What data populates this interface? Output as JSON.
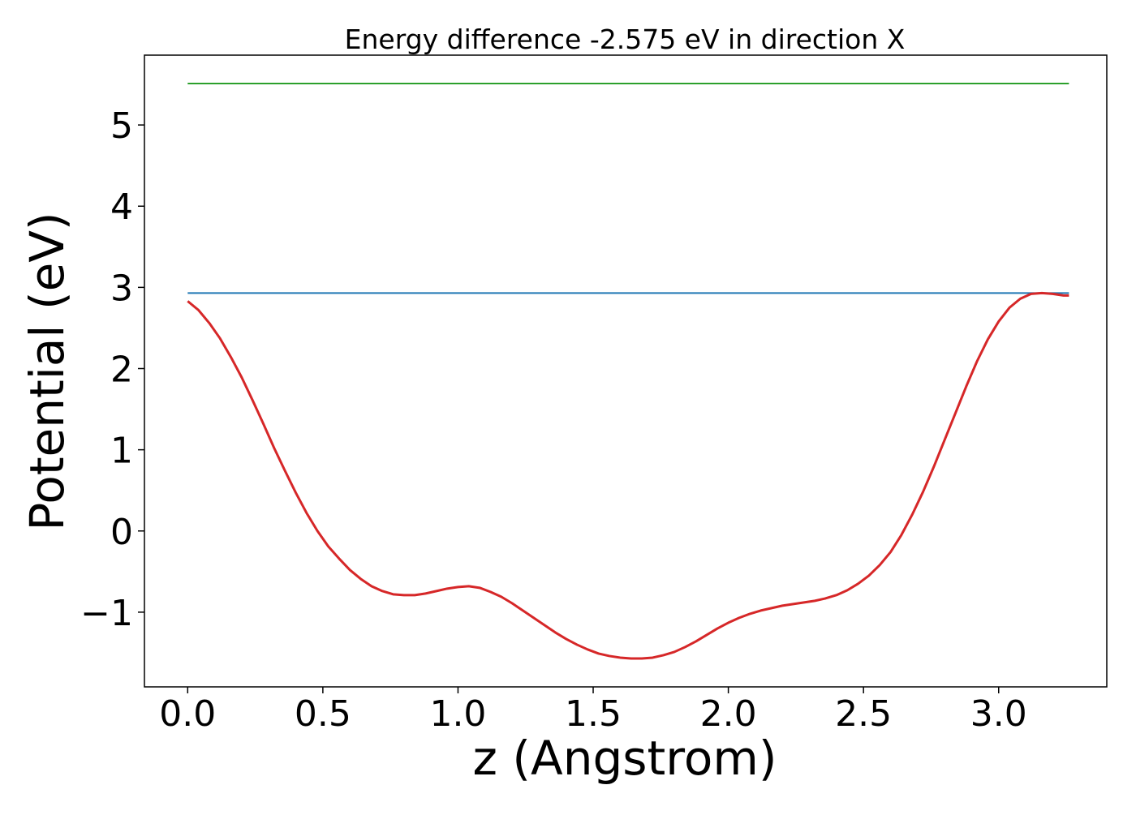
{
  "chart_data": {
    "type": "line",
    "title": "Energy difference -2.575 eV in direction X",
    "xlabel": "z (Angstrom)",
    "ylabel": "Potential (eV)",
    "xlim": [
      -0.16,
      3.4
    ],
    "ylim": [
      -1.92,
      5.86
    ],
    "xticks": [
      0.0,
      0.5,
      1.0,
      1.5,
      2.0,
      2.5,
      3.0
    ],
    "xtick_labels": [
      "0.0",
      "0.5",
      "1.0",
      "1.5",
      "2.0",
      "2.5",
      "3.0"
    ],
    "yticks": [
      -1,
      0,
      1,
      2,
      3,
      4,
      5
    ],
    "ytick_labels": [
      "−1",
      "0",
      "1",
      "2",
      "3",
      "4",
      "5"
    ],
    "grid": false,
    "series": [
      {
        "color": "#2ca02c",
        "x": [
          0.0,
          3.26
        ],
        "y": [
          5.51,
          5.51
        ]
      },
      {
        "color": "#1f77b4",
        "x": [
          0.0,
          3.26
        ],
        "y": [
          2.93,
          2.93
        ]
      },
      {
        "color": "#d62728",
        "x": [
          0.0,
          0.04,
          0.08,
          0.12,
          0.16,
          0.2,
          0.24,
          0.28,
          0.32,
          0.36,
          0.4,
          0.44,
          0.48,
          0.52,
          0.56,
          0.6,
          0.64,
          0.68,
          0.72,
          0.76,
          0.8,
          0.84,
          0.88,
          0.92,
          0.96,
          1.0,
          1.04,
          1.08,
          1.12,
          1.16,
          1.2,
          1.24,
          1.28,
          1.32,
          1.36,
          1.4,
          1.44,
          1.48,
          1.52,
          1.56,
          1.6,
          1.64,
          1.68,
          1.72,
          1.76,
          1.8,
          1.84,
          1.88,
          1.92,
          1.96,
          2.0,
          2.04,
          2.08,
          2.12,
          2.16,
          2.2,
          2.24,
          2.28,
          2.32,
          2.36,
          2.4,
          2.44,
          2.48,
          2.52,
          2.56,
          2.6,
          2.64,
          2.68,
          2.72,
          2.76,
          2.8,
          2.84,
          2.88,
          2.92,
          2.96,
          3.0,
          3.04,
          3.08,
          3.12,
          3.16,
          3.2,
          3.24,
          3.26
        ],
        "y": [
          2.83,
          2.72,
          2.56,
          2.37,
          2.14,
          1.89,
          1.61,
          1.32,
          1.02,
          0.74,
          0.47,
          0.22,
          0.0,
          -0.19,
          -0.34,
          -0.48,
          -0.59,
          -0.68,
          -0.74,
          -0.78,
          -0.79,
          -0.79,
          -0.77,
          -0.74,
          -0.71,
          -0.69,
          -0.68,
          -0.7,
          -0.75,
          -0.81,
          -0.89,
          -0.98,
          -1.07,
          -1.16,
          -1.25,
          -1.33,
          -1.4,
          -1.46,
          -1.51,
          -1.54,
          -1.56,
          -1.57,
          -1.57,
          -1.56,
          -1.53,
          -1.49,
          -1.43,
          -1.36,
          -1.28,
          -1.2,
          -1.13,
          -1.07,
          -1.02,
          -0.98,
          -0.95,
          -0.92,
          -0.9,
          -0.88,
          -0.86,
          -0.83,
          -0.79,
          -0.73,
          -0.65,
          -0.55,
          -0.42,
          -0.26,
          -0.05,
          0.2,
          0.48,
          0.79,
          1.12,
          1.45,
          1.78,
          2.09,
          2.36,
          2.58,
          2.75,
          2.86,
          2.92,
          2.93,
          2.92,
          2.9,
          2.9
        ]
      }
    ]
  }
}
